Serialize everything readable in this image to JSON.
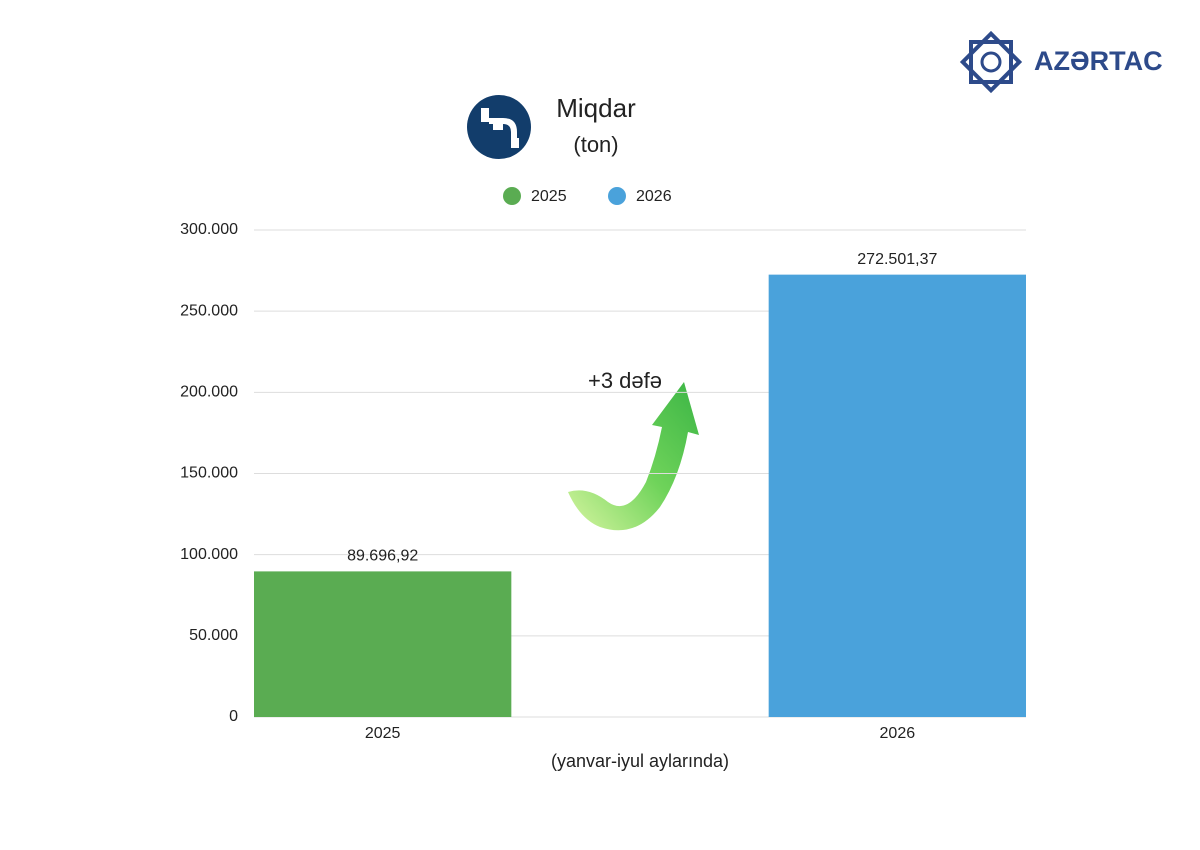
{
  "chart_data": {
    "type": "bar",
    "title": "Miqdar",
    "subtitle": "(ton)",
    "brand": "AZƏRTAC",
    "annotation": "+3 dəfə",
    "x_label": "(yanvar-iyul aylarında)",
    "categories": [
      "2025",
      "2026"
    ],
    "series": [
      {
        "name": "2025",
        "color": "#5aac52",
        "values": [
          89696.92,
          null
        ],
        "value_labels": [
          "89.696,92",
          null
        ]
      },
      {
        "name": "2026",
        "color": "#4aa2db",
        "values": [
          null,
          272501.37
        ],
        "value_labels": [
          null,
          "272.501,37"
        ]
      }
    ],
    "ylim": [
      0,
      300000
    ],
    "yticks": [
      0,
      {
        "value": 50000,
        "label": "50.000"
      },
      {
        "value": 100000,
        "label": "100.000"
      },
      {
        "value": 150000,
        "label": "150.000"
      },
      {
        "value": 200000,
        "label": "200.000"
      },
      {
        "value": 250000,
        "label": "250.000"
      },
      {
        "value": 300000,
        "label": "300.000"
      }
    ],
    "grid": true,
    "legend": "top"
  }
}
